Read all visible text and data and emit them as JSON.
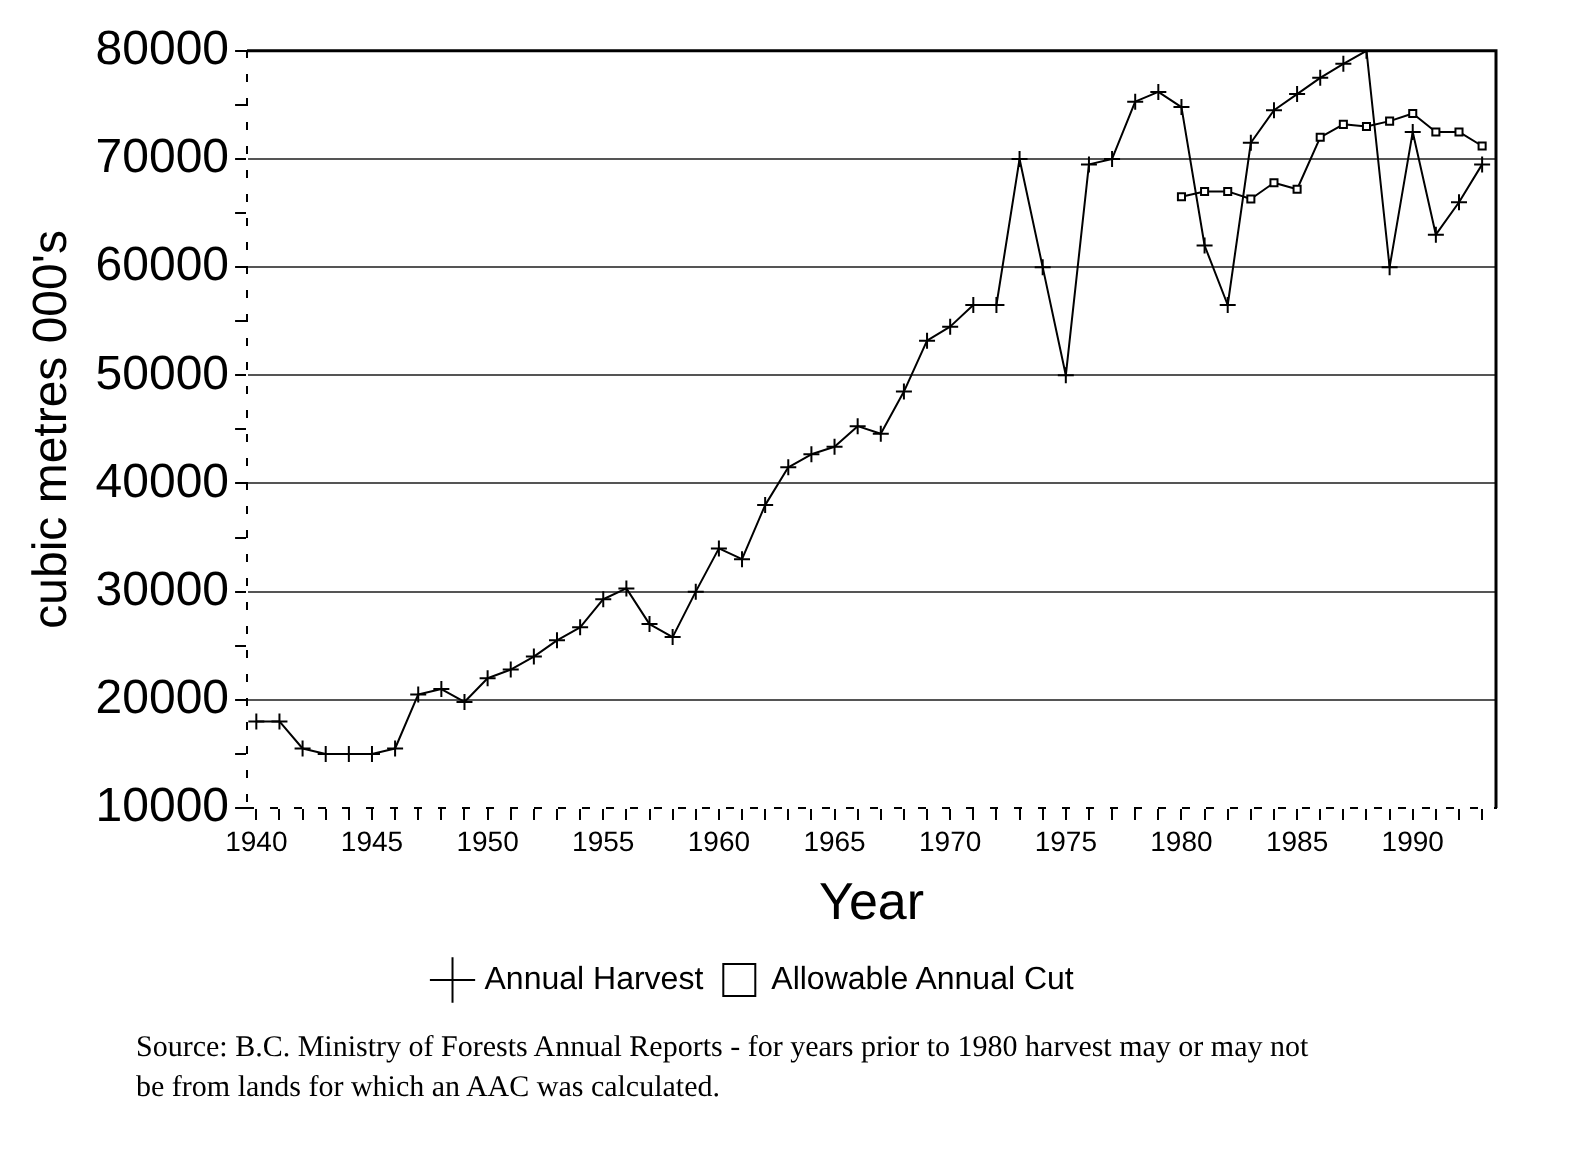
{
  "chart_data": {
    "type": "line",
    "xlabel": "Year",
    "ylabel": "cubic metres 000's",
    "x": [
      1940,
      1941,
      1942,
      1943,
      1944,
      1945,
      1946,
      1947,
      1948,
      1949,
      1950,
      1951,
      1952,
      1953,
      1954,
      1955,
      1956,
      1957,
      1958,
      1959,
      1960,
      1961,
      1962,
      1963,
      1964,
      1965,
      1966,
      1967,
      1968,
      1969,
      1970,
      1971,
      1972,
      1973,
      1974,
      1975,
      1976,
      1977,
      1978,
      1979,
      1980,
      1981,
      1982,
      1983,
      1984,
      1985,
      1986,
      1987,
      1988,
      1989,
      1990,
      1991,
      1992,
      1993
    ],
    "series": [
      {
        "name": "Annual Harvest",
        "color": "#000000",
        "marker": "cross",
        "values": [
          18000,
          18000,
          15500,
          15000,
          15000,
          15000,
          15500,
          20500,
          21000,
          19800,
          22000,
          22800,
          24000,
          25500,
          26700,
          29300,
          30300,
          27000,
          25800,
          30000,
          34000,
          33000,
          38000,
          41500,
          42700,
          43400,
          45300,
          44600,
          48500,
          53200,
          54500,
          56500,
          56500,
          70000,
          60000,
          50000,
          69500,
          70000,
          75300,
          76200,
          74800,
          62000,
          56500,
          71500,
          74500,
          76000,
          77500,
          78800,
          80000,
          60000,
          72500,
          63000,
          66000,
          69500
        ]
      },
      {
        "name": "Allowable Annual Cut",
        "color": "#000000",
        "marker": "square",
        "x": [
          1980,
          1981,
          1982,
          1983,
          1984,
          1985,
          1986,
          1987,
          1988,
          1989,
          1990,
          1991,
          1992,
          1993
        ],
        "values": [
          66500,
          67000,
          67000,
          66300,
          67800,
          67200,
          72000,
          73200,
          73000,
          73500,
          74200,
          72500,
          72500,
          71200
        ]
      }
    ],
    "xlim": [
      1939.6,
      1993.6
    ],
    "xticks": [
      1940,
      {
        "value": 1941,
        "label": null
      },
      {
        "value": 1942,
        "label": null
      },
      {
        "value": 1943,
        "label": null
      },
      {
        "value": 1944,
        "label": null
      },
      1945,
      {
        "value": 1946,
        "label": null
      },
      {
        "value": 1947,
        "label": null
      },
      {
        "value": 1948,
        "label": null
      },
      {
        "value": 1949,
        "label": null
      },
      1950,
      {
        "value": 1951,
        "label": null
      },
      {
        "value": 1952,
        "label": null
      },
      {
        "value": 1953,
        "label": null
      },
      {
        "value": 1954,
        "label": null
      },
      1955,
      {
        "value": 1956,
        "label": null
      },
      {
        "value": 1957,
        "label": null
      },
      {
        "value": 1958,
        "label": null
      },
      {
        "value": 1959,
        "label": null
      },
      1960,
      {
        "value": 1961,
        "label": null
      },
      {
        "value": 1962,
        "label": null
      },
      {
        "value": 1963,
        "label": null
      },
      {
        "value": 1964,
        "label": null
      },
      1965,
      {
        "value": 1966,
        "label": null
      },
      {
        "value": 1967,
        "label": null
      },
      {
        "value": 1968,
        "label": null
      },
      {
        "value": 1969,
        "label": null
      },
      1970,
      {
        "value": 1971,
        "label": null
      },
      {
        "value": 1972,
        "label": null
      },
      {
        "value": 1973,
        "label": null
      },
      {
        "value": 1974,
        "label": null
      },
      1975,
      {
        "value": 1976,
        "label": null
      },
      {
        "value": 1977,
        "label": null
      },
      {
        "value": 1978,
        "label": null
      },
      {
        "value": 1979,
        "label": null
      },
      1980,
      {
        "value": 1981,
        "label": null
      },
      {
        "value": 1982,
        "label": null
      },
      {
        "value": 1983,
        "label": null
      },
      {
        "value": 1984,
        "label": null
      },
      1985,
      {
        "value": 1986,
        "label": null
      },
      {
        "value": 1987,
        "label": null
      },
      {
        "value": 1988,
        "label": null
      },
      {
        "value": 1989,
        "label": null
      },
      1990,
      {
        "value": 1991,
        "label": null
      },
      {
        "value": 1992,
        "label": null
      },
      {
        "value": 1993,
        "label": null
      }
    ],
    "ylim": [
      10000,
      80000
    ],
    "yticks": [
      10000,
      {
        "value": 15000,
        "label": null
      },
      20000,
      {
        "value": 25000,
        "label": null
      },
      30000,
      {
        "value": 35000,
        "label": null
      },
      40000,
      {
        "value": 45000,
        "label": null
      },
      50000,
      {
        "value": 55000,
        "label": null
      },
      60000,
      {
        "value": 65000,
        "label": null
      },
      70000,
      {
        "value": 75000,
        "label": null
      },
      80000
    ],
    "grid": "y",
    "line_style": "solid",
    "legend": "bottom",
    "annotations": [
      "Source: B.C. Ministry of Forests Annual Reports - for years prior to 1980 harvest may or may not be from lands for which an AAC was calculated."
    ]
  }
}
